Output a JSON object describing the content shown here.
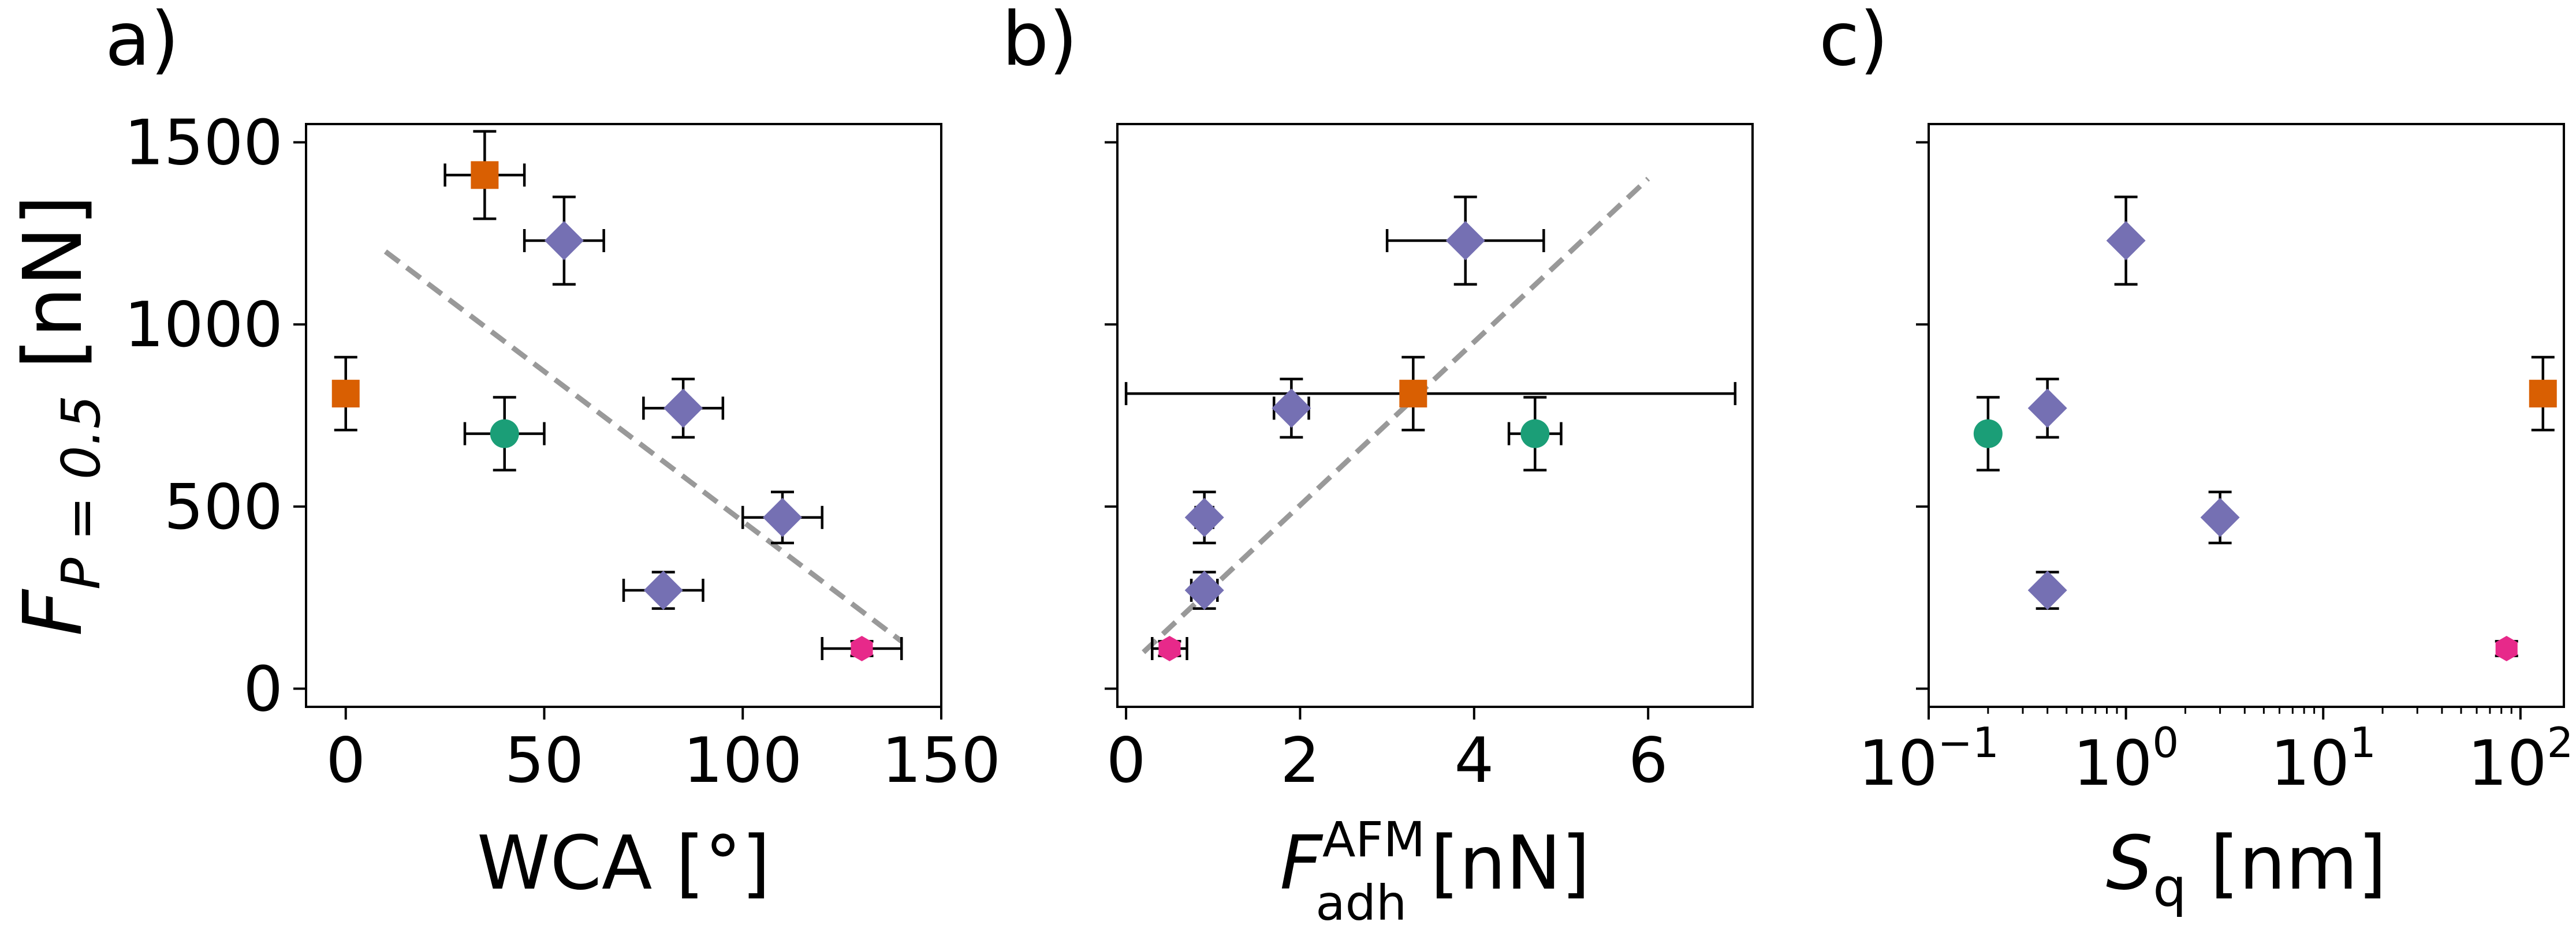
{
  "figure": {
    "ylabel_main": "F",
    "ylabel_sub": "P = 0.5",
    "ylabel_unit": "[nN]"
  },
  "chart_data": [
    {
      "panel": "a)",
      "type": "scatter",
      "xscale": "linear",
      "xlabel": "WCA [°]",
      "ylabel": "F_{P = 0.5} [nN]",
      "xlim": [
        -10,
        150
      ],
      "ylim": [
        -50,
        1550
      ],
      "xticks": [
        0,
        50,
        100,
        150
      ],
      "xtick_labels": [
        "0",
        "50",
        "100",
        "150"
      ],
      "yticks": [
        0,
        500,
        1000,
        1500
      ],
      "ytick_labels": [
        "0",
        "500",
        "1000",
        "1500"
      ],
      "points": [
        {
          "x": 35,
          "y": 1410,
          "xerr": 10,
          "yerr": 120,
          "marker": "square",
          "color": "#d95f02"
        },
        {
          "x": 0,
          "y": 810,
          "xerr": 0,
          "yerr": 100,
          "marker": "square",
          "color": "#d95f02"
        },
        {
          "x": 55,
          "y": 1230,
          "xerr": 10,
          "yerr": 120,
          "marker": "diamond",
          "color": "#7570b3"
        },
        {
          "x": 85,
          "y": 770,
          "xerr": 10,
          "yerr": 80,
          "marker": "diamond",
          "color": "#7570b3"
        },
        {
          "x": 110,
          "y": 470,
          "xerr": 10,
          "yerr": 70,
          "marker": "diamond",
          "color": "#7570b3"
        },
        {
          "x": 80,
          "y": 270,
          "xerr": 10,
          "yerr": 50,
          "marker": "diamond",
          "color": "#7570b3"
        },
        {
          "x": 40,
          "y": 700,
          "xerr": 10,
          "yerr": 100,
          "marker": "circle",
          "color": "#1b9e77"
        },
        {
          "x": 130,
          "y": 110,
          "xerr": 10,
          "yerr": 20,
          "marker": "hexagon",
          "color": "#e7298a"
        }
      ],
      "fit_line": {
        "x": [
          10,
          140
        ],
        "y": [
          1200,
          130
        ],
        "style": "dashed",
        "color": "#999999"
      }
    },
    {
      "panel": "b)",
      "type": "scatter",
      "xscale": "linear",
      "xlabel": "F_adh^AFM [nN]",
      "xlabel_main": "F",
      "xlabel_sup": "AFM",
      "xlabel_sub": "adh",
      "xlabel_unit": "[nN]",
      "xlim": [
        -0.1,
        7.2
      ],
      "ylim": [
        -50,
        1550
      ],
      "xticks": [
        0,
        2,
        4,
        6
      ],
      "xtick_labels": [
        "0",
        "2",
        "4",
        "6"
      ],
      "yticks": [
        0,
        500,
        1000,
        1500
      ],
      "points": [
        {
          "x": 3.9,
          "y": 1230,
          "xerr": 0.9,
          "yerr": 120,
          "marker": "diamond",
          "color": "#7570b3"
        },
        {
          "x": 3.3,
          "y": 810,
          "xerr": 3.3,
          "xerr_hi": 3.7,
          "yerr": 100,
          "marker": "square",
          "color": "#d95f02"
        },
        {
          "x": 1.9,
          "y": 770,
          "xerr": 0.2,
          "yerr": 80,
          "marker": "diamond",
          "color": "#7570b3"
        },
        {
          "x": 4.7,
          "y": 700,
          "xerr": 0.3,
          "yerr": 100,
          "marker": "circle",
          "color": "#1b9e77"
        },
        {
          "x": 0.9,
          "y": 470,
          "xerr": 0.1,
          "yerr": 70,
          "marker": "diamond",
          "color": "#7570b3"
        },
        {
          "x": 0.9,
          "y": 270,
          "xerr": 0.15,
          "yerr": 50,
          "marker": "diamond",
          "color": "#7570b3"
        },
        {
          "x": 0.5,
          "y": 110,
          "xerr": 0.2,
          "yerr": 20,
          "marker": "hexagon",
          "color": "#e7298a"
        }
      ],
      "fit_line": {
        "x": [
          0.2,
          6.0
        ],
        "y": [
          100,
          1400
        ],
        "style": "dashed",
        "color": "#999999"
      }
    },
    {
      "panel": "c)",
      "type": "scatter",
      "xscale": "log",
      "xlabel": "S_q [nm]",
      "xlabel_main": "S",
      "xlabel_sub": "q",
      "xlabel_unit": "[nm]",
      "xlim_log10": [
        -1,
        2.22
      ],
      "ylim": [
        -50,
        1550
      ],
      "xticks_log10": [
        -1,
        0,
        1,
        2
      ],
      "xtick_base": "10",
      "xtick_exps": [
        "−1",
        "0",
        "1",
        "2"
      ],
      "yticks": [
        0,
        500,
        1000,
        1500
      ],
      "points": [
        {
          "x": 0.2,
          "y": 700,
          "yerr": 100,
          "marker": "circle",
          "color": "#1b9e77"
        },
        {
          "x": 0.4,
          "y": 770,
          "yerr": 80,
          "marker": "diamond",
          "color": "#7570b3"
        },
        {
          "x": 0.4,
          "y": 270,
          "yerr": 50,
          "marker": "diamond",
          "color": "#7570b3"
        },
        {
          "x": 1.0,
          "y": 1230,
          "yerr": 120,
          "marker": "diamond",
          "color": "#7570b3"
        },
        {
          "x": 3.0,
          "y": 470,
          "yerr": 70,
          "marker": "diamond",
          "color": "#7570b3"
        },
        {
          "x": 85,
          "y": 110,
          "yerr": 20,
          "marker": "hexagon",
          "color": "#e7298a"
        },
        {
          "x": 130,
          "y": 810,
          "yerr": 100,
          "marker": "square",
          "color": "#d95f02"
        }
      ]
    }
  ]
}
